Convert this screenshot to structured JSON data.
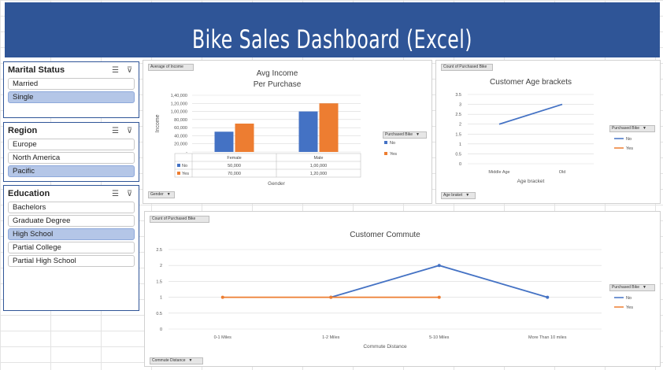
{
  "dashboard": {
    "title": "Bike Sales Dashboard (Excel)"
  },
  "colors": {
    "banner": "#2f5597",
    "series_no": "#4472c4",
    "series_yes": "#ed7d31",
    "selected_item": "#b4c6e7"
  },
  "slicers": {
    "marital": {
      "title": "Marital Status",
      "items": [
        {
          "label": "Married",
          "selected": false
        },
        {
          "label": "Single",
          "selected": true
        }
      ]
    },
    "region": {
      "title": "Region",
      "items": [
        {
          "label": "Europe",
          "selected": false
        },
        {
          "label": "North America",
          "selected": false
        },
        {
          "label": "Pacific",
          "selected": true
        }
      ]
    },
    "education": {
      "title": "Education",
      "items": [
        {
          "label": "Bachelors",
          "selected": false
        },
        {
          "label": "Graduate Degree",
          "selected": false
        },
        {
          "label": "High School",
          "selected": true
        },
        {
          "label": "Partial College",
          "selected": false
        },
        {
          "label": "Partial High School",
          "selected": false
        }
      ]
    }
  },
  "icons": {
    "multiselect": "multi-select-icon",
    "clear_filter": "clear-filter-icon"
  },
  "income_chart": {
    "field_value": "Average of Income",
    "field_axis": "Gender",
    "legend_field": "Purchased Bike",
    "table": {
      "headers": [
        "Female",
        "Male"
      ],
      "rows": [
        {
          "label": "No",
          "values": [
            "50,000",
            "1,00,000"
          ]
        },
        {
          "label": "Yes",
          "values": [
            "70,000",
            "1,20,000"
          ]
        }
      ]
    }
  },
  "age_chart": {
    "field_value": "Count of Purchased Bike",
    "field_axis": "Age braket",
    "legend_field": "Purchased Bike"
  },
  "commute_chart": {
    "field_value": "Count of Purchased Bike",
    "field_axis": "Commute Distance",
    "legend_field": "Purchased Bike"
  },
  "chart_data": [
    {
      "type": "bar",
      "title": "Avg Income Per Purchase",
      "title_lines": [
        "Avg Income",
        "Per Purchase"
      ],
      "categories": [
        "Female",
        "Male"
      ],
      "series": [
        {
          "name": "No",
          "values": [
            50000,
            100000
          ]
        },
        {
          "name": "Yes",
          "values": [
            70000,
            120000
          ]
        }
      ],
      "xlabel": "Gender",
      "ylabel": "Income",
      "ylim": [
        0,
        140000
      ],
      "yticks": [
        "-",
        "20,000",
        "40,000",
        "60,000",
        "80,000",
        "1,00,000",
        "1,20,000",
        "1,40,000"
      ],
      "grid": true,
      "legend": "right"
    },
    {
      "type": "line",
      "title": "Customer Age brackets",
      "categories": [
        "Middle Age",
        "Old"
      ],
      "series": [
        {
          "name": "No",
          "values": [
            2,
            3
          ]
        },
        {
          "name": "Yes",
          "values": [
            null,
            null
          ]
        }
      ],
      "xlabel": "Age bracket",
      "ylabel": "",
      "ylim": [
        0,
        3.5
      ],
      "yticks": [
        "0",
        "0.5",
        "1",
        "1.5",
        "2",
        "2.5",
        "3",
        "3.5"
      ],
      "grid": true,
      "legend": "right"
    },
    {
      "type": "line",
      "title": "Customer Commute",
      "categories": [
        "0-1 Miles",
        "1-2 Miles",
        "5-10 Miles",
        "More Than 10 miles"
      ],
      "series": [
        {
          "name": "No",
          "values": [
            null,
            1,
            2,
            1
          ]
        },
        {
          "name": "Yes",
          "values": [
            1,
            1,
            1,
            null
          ]
        }
      ],
      "xlabel": "Commute Distance",
      "ylabel": "",
      "ylim": [
        0,
        2.5
      ],
      "yticks": [
        "0",
        "0.5",
        "1",
        "1.5",
        "2",
        "2.5"
      ],
      "grid": true,
      "legend": "right"
    }
  ]
}
